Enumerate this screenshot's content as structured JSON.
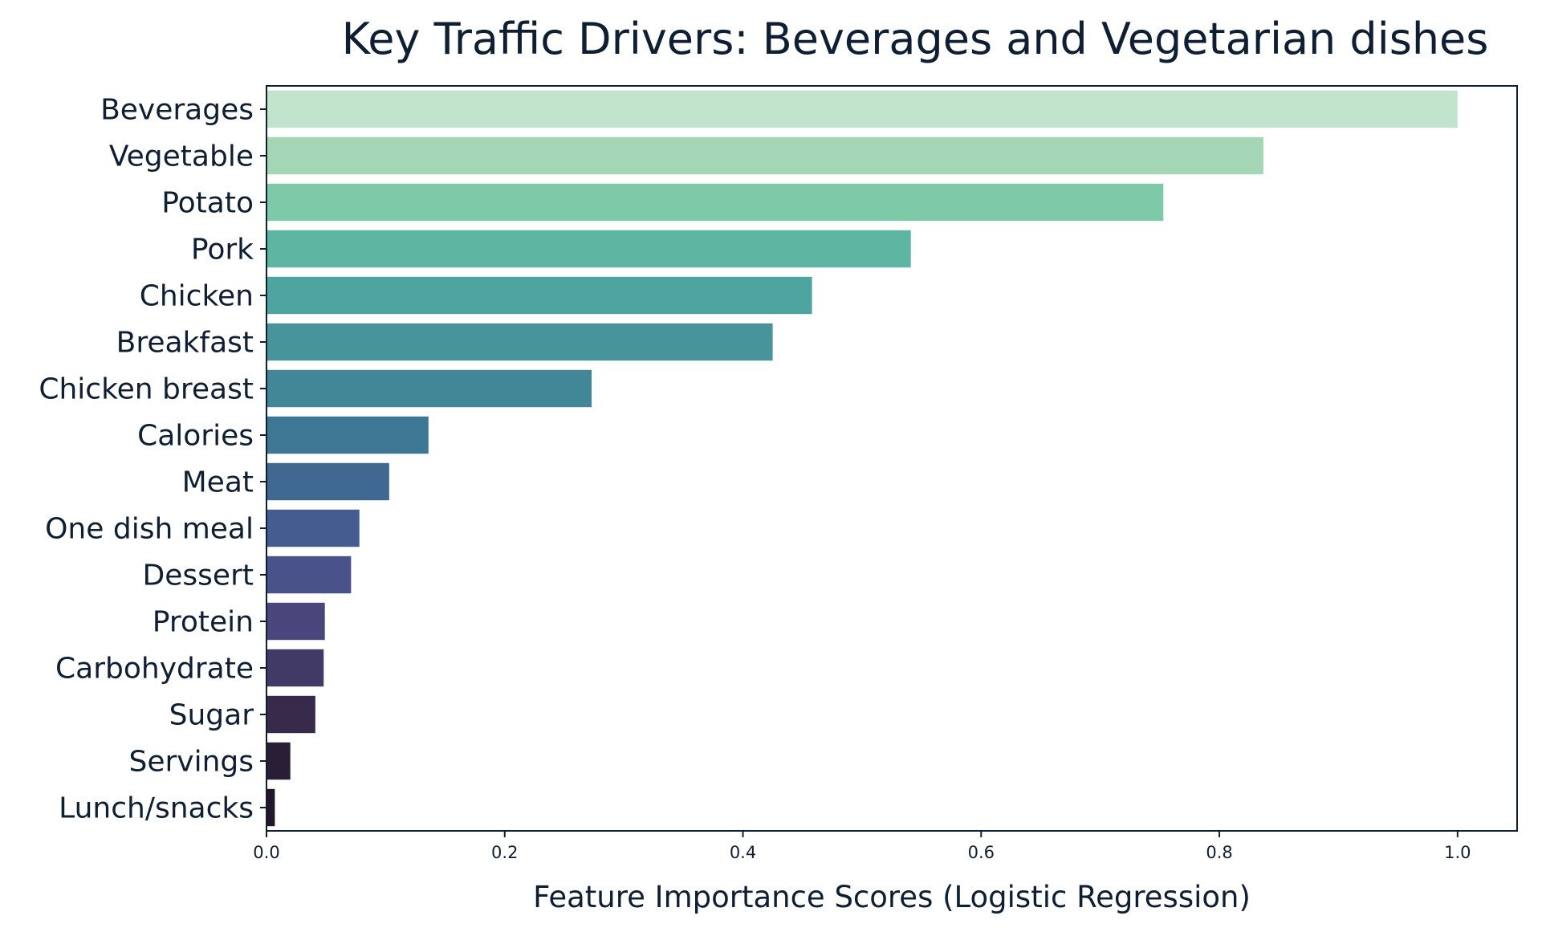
{
  "chart_data": {
    "type": "bar",
    "orientation": "horizontal",
    "title": "Key Traffic Drivers: Beverages and Vegetarian dishes",
    "xlabel": "Feature Importance Scores (Logistic Regression)",
    "ylabel": "",
    "xlim": [
      0,
      1.05
    ],
    "xticks": [
      0.0,
      0.2,
      0.4,
      0.6,
      0.8,
      1.0
    ],
    "xtick_labels": [
      "0.0",
      "0.2",
      "0.4",
      "0.6",
      "0.8",
      "1.0"
    ],
    "grid": false,
    "categories": [
      "Beverages",
      "Vegetable",
      "Potato",
      "Pork",
      "Chicken",
      "Breakfast",
      "Chicken breast",
      "Calories",
      "Meat",
      "One dish meal",
      "Dessert",
      "Protein",
      "Carbohydrate",
      "Sugar",
      "Servings",
      "Lunch/snacks"
    ],
    "values": [
      1.0,
      0.837,
      0.753,
      0.541,
      0.458,
      0.425,
      0.273,
      0.136,
      0.103,
      0.078,
      0.071,
      0.049,
      0.048,
      0.041,
      0.02,
      0.007
    ],
    "colors": [
      "#c3e4cc",
      "#a4d6b6",
      "#7ecaa8",
      "#5db6a2",
      "#4ea59f",
      "#47959b",
      "#418797",
      "#3e7793",
      "#416890",
      "#445c90",
      "#49538a",
      "#48467a",
      "#423a66",
      "#372a4a",
      "#2a1d36",
      "#221628"
    ]
  }
}
